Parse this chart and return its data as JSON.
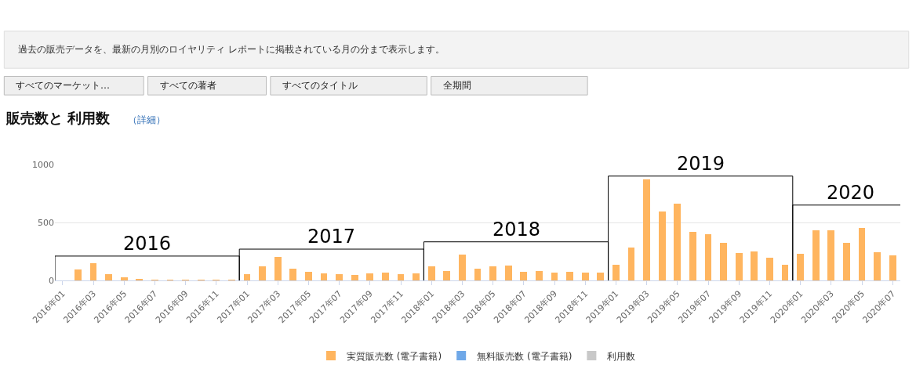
{
  "chart_data": {
    "type": "bar",
    "title": "販売数と 利用数",
    "subtitle": "（詳細）",
    "categories": [
      "2016年01",
      null,
      "2016年03",
      null,
      "2016年05",
      null,
      "2016年07",
      null,
      "2016年09",
      null,
      "2016年11",
      null,
      "2017年01",
      null,
      "2017年03",
      null,
      "2017年05",
      null,
      "2017年07",
      null,
      "2017年09",
      null,
      "2017年11",
      null,
      "2018年01",
      null,
      "2018年03",
      null,
      "2018年05",
      null,
      "2018年07",
      null,
      "2018年09",
      null,
      "2018年11",
      null,
      "2019年01",
      null,
      "2019年03",
      null,
      "2019年05",
      null,
      "2019年07",
      null,
      "2019年09",
      null,
      "2019年11",
      null,
      "2020年01",
      null,
      "2020年03",
      null,
      "2020年05",
      null,
      "2020年07"
    ],
    "series": [
      {
        "name": "実質販売数 (電子書籍)",
        "color": "#ffb55f",
        "values": [
          0,
          96,
          150,
          51,
          26,
          13,
          6,
          6,
          6,
          6,
          6,
          6,
          51,
          122,
          205,
          103,
          77,
          58,
          51,
          45,
          58,
          70,
          51,
          64,
          121,
          82,
          224,
          103,
          121,
          129,
          77,
          82,
          70,
          77,
          70,
          70,
          134,
          284,
          869,
          598,
          662,
          418,
          399,
          322,
          237,
          250,
          193,
          134,
          232,
          430,
          430,
          322,
          451,
          245,
          219
        ]
      },
      {
        "name": "無料販売数 (電子書籍)",
        "color": "#6fa8e8",
        "values": [
          0,
          0,
          0,
          0,
          0,
          0,
          0,
          0,
          0,
          0,
          0,
          0,
          0,
          0,
          0,
          0,
          0,
          0,
          0,
          0,
          0,
          0,
          0,
          0,
          0,
          0,
          0,
          0,
          0,
          0,
          0,
          0,
          0,
          0,
          0,
          0,
          0,
          0,
          0,
          0,
          0,
          0,
          0,
          0,
          0,
          0,
          0,
          0,
          0,
          0,
          0,
          0,
          0,
          0,
          0
        ]
      },
      {
        "name": "利用数",
        "color": "#c8c8c8",
        "values": [
          0,
          0,
          0,
          0,
          0,
          0,
          0,
          0,
          0,
          0,
          0,
          0,
          0,
          0,
          0,
          0,
          0,
          0,
          0,
          0,
          0,
          0,
          0,
          0,
          0,
          0,
          0,
          0,
          0,
          0,
          0,
          0,
          0,
          0,
          0,
          0,
          0,
          0,
          0,
          0,
          0,
          0,
          0,
          0,
          0,
          0,
          0,
          0,
          0,
          0,
          0,
          0,
          0,
          0,
          0
        ]
      }
    ],
    "stacked": true,
    "ylim": [
      0,
      1000
    ],
    "yticks": [
      0,
      500,
      1000
    ],
    "grid": "y",
    "legend": "bottom",
    "annotations": [
      "過去の販売データを、最新の月別のロイヤリティ レポートに掲載されている月の分まで表示します。",
      "すべてのマーケット…",
      "すべての著者",
      "すべてのタイトル",
      "全期間",
      "2016",
      "2017",
      "2018",
      "2019",
      "2020"
    ]
  }
}
